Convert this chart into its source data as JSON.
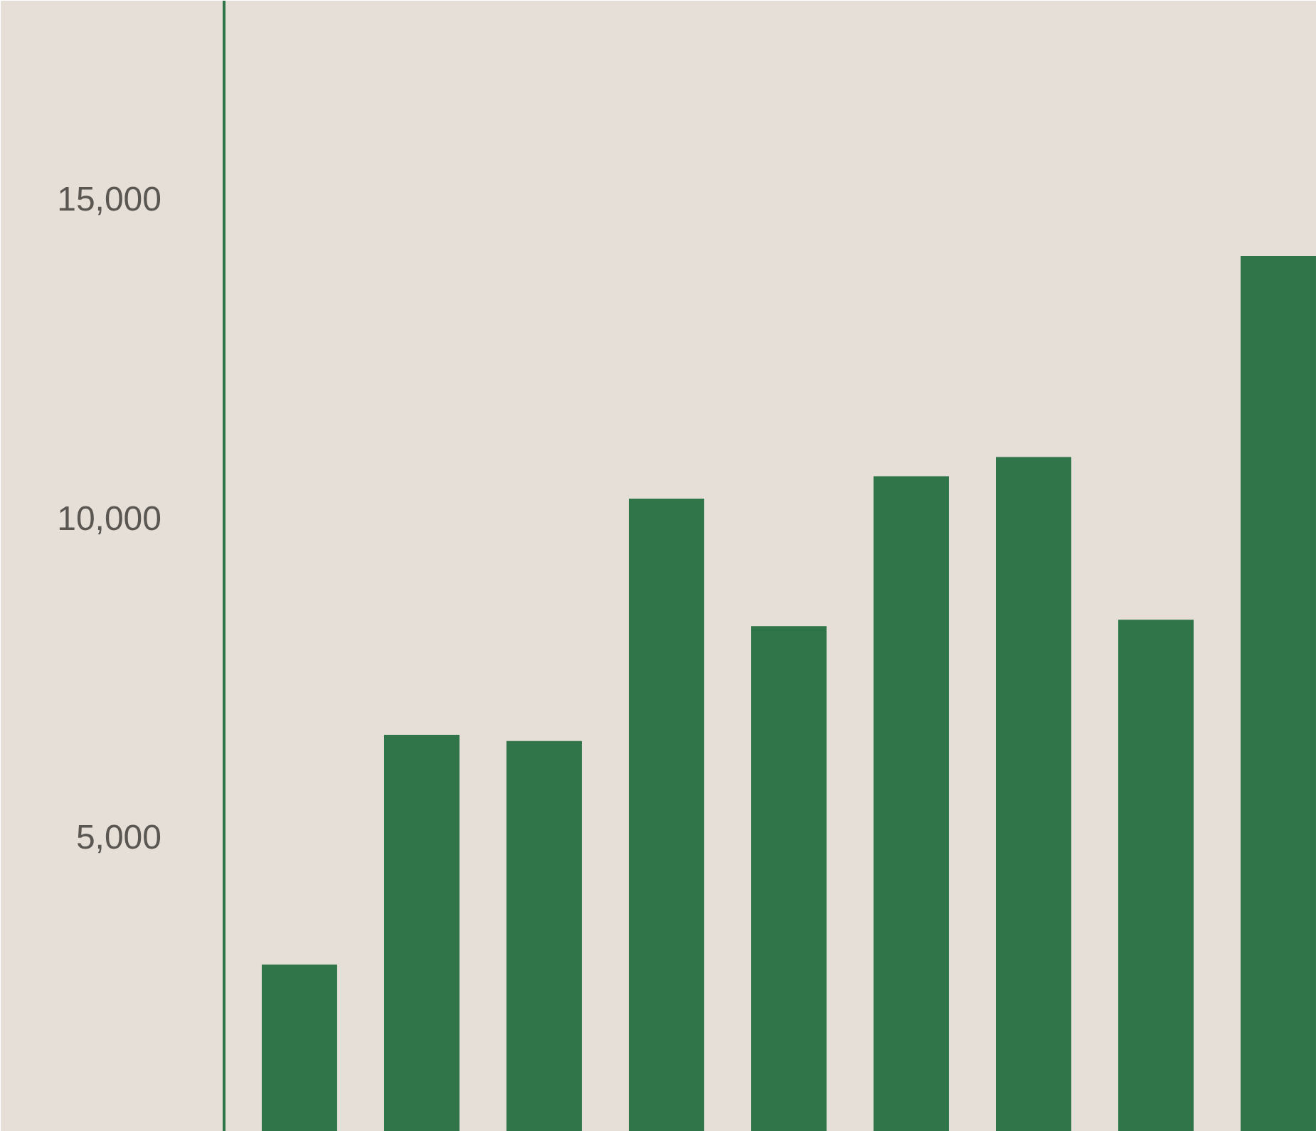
{
  "chart_data": {
    "type": "bar",
    "categories": [
      null,
      null,
      null,
      null,
      null,
      null,
      null,
      null,
      null
    ],
    "values": [
      3000,
      6600,
      6500,
      10300,
      8300,
      10650,
      10950,
      8400,
      14100
    ],
    "color": "#2f7549",
    "ylim": [
      380,
      18100
    ],
    "yticks": [
      {
        "value": 5000,
        "label": "5,000"
      },
      {
        "value": 10000,
        "label": "10,000"
      },
      {
        "value": 15000,
        "label": "15,000"
      }
    ],
    "grid": false
  }
}
